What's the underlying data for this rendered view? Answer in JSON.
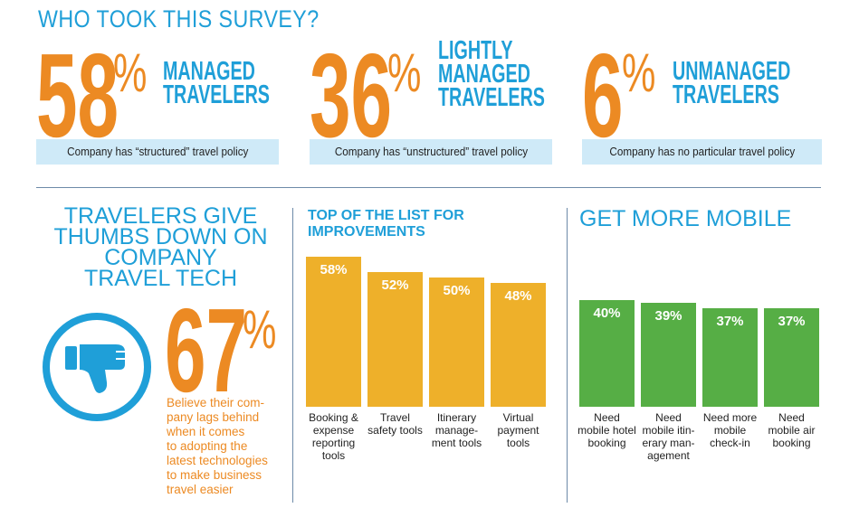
{
  "header": {
    "title": "WHO TOOK THIS SURVEY?"
  },
  "segments": [
    {
      "pct": "58",
      "sign": "%",
      "label_lines": [
        "MANAGED",
        "TRAVELERS"
      ],
      "policy": "Company has “structured” travel policy"
    },
    {
      "pct": "36",
      "sign": "%",
      "label_lines": [
        "LIGHTLY",
        "MANAGED",
        "TRAVELERS"
      ],
      "policy": "Company has “unstructured” travel policy"
    },
    {
      "pct": "6",
      "sign": "%",
      "label_lines": [
        "UNMANAGED",
        "TRAVELERS"
      ],
      "policy": "Company has no particular travel policy"
    }
  ],
  "thumbs": {
    "title_lines": [
      "TRAVELERS GIVE",
      "THUMBS DOWN ON",
      "COMPANY",
      "TRAVEL TECH"
    ],
    "pct": "67",
    "sign": "%",
    "desc_lines": [
      "Believe their com-",
      "pany lags behind",
      "when it comes",
      "to adopting the",
      "latest technologies",
      "to make business",
      "travel easier"
    ],
    "icon": "thumbs-down-icon"
  },
  "colors": {
    "blue": "#1f9fd8",
    "orange": "#ec8a23",
    "bar_gold": "#eeb02a",
    "bar_green": "#56ae45",
    "policy_bg": "#cfeaf8"
  },
  "chart_data": [
    {
      "type": "bar",
      "title": "TOP OF THE LIST FOR IMPROVEMENTS",
      "categories": [
        "Booking & expense reporting tools",
        "Travel safety tools",
        "Itinerary management tools",
        "Virtual payment tools"
      ],
      "category_lines": [
        [
          "Booking &",
          "expense",
          "reporting",
          "tools"
        ],
        [
          "Travel",
          "safety tools"
        ],
        [
          "Itinerary",
          "manage-",
          "ment tools"
        ],
        [
          "Virtual",
          "payment",
          "tools"
        ]
      ],
      "values": [
        58,
        52,
        50,
        48
      ],
      "value_labels": [
        "58%",
        "52%",
        "50%",
        "48%"
      ],
      "ylim": [
        0,
        58
      ],
      "color": "#eeb02a",
      "grid": false
    },
    {
      "type": "bar",
      "title": "GET MORE MOBILE",
      "categories": [
        "Need mobile hotel booking",
        "Need mobile itinerary management",
        "Need more mobile check-in",
        "Need mobile air booking"
      ],
      "category_lines": [
        [
          "Need",
          "mobile hotel",
          "booking"
        ],
        [
          "Need",
          "mobile itin-",
          "erary man-",
          "agement"
        ],
        [
          "Need more",
          "mobile",
          "check-in"
        ],
        [
          "Need",
          "mobile air",
          "booking"
        ]
      ],
      "values": [
        40,
        39,
        37,
        37
      ],
      "value_labels": [
        "40%",
        "39%",
        "37%",
        "37%"
      ],
      "ylim": [
        0,
        40
      ],
      "color": "#56ae45",
      "grid": false
    }
  ]
}
